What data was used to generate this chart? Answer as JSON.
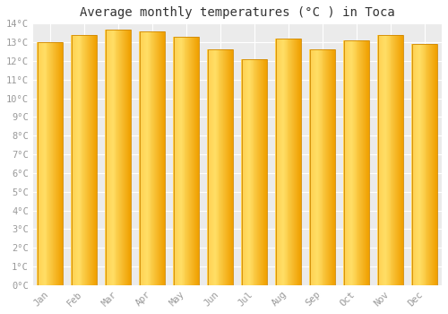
{
  "months": [
    "Jan",
    "Feb",
    "Mar",
    "Apr",
    "May",
    "Jun",
    "Jul",
    "Aug",
    "Sep",
    "Oct",
    "Nov",
    "Dec"
  ],
  "values": [
    13.0,
    13.4,
    13.7,
    13.6,
    13.3,
    12.6,
    12.1,
    13.2,
    12.6,
    13.1,
    13.4,
    12.9
  ],
  "bar_color_left": "#FFD050",
  "bar_color_right": "#F0A000",
  "bar_edge_color": "#D08800",
  "title": "Average monthly temperatures (°C ) in Toca",
  "ylim": [
    0,
    14
  ],
  "ytick_step": 1,
  "background_color": "#FFFFFF",
  "plot_bg_color": "#EBEBEB",
  "grid_color": "#FFFFFF",
  "title_fontsize": 10,
  "tick_fontsize": 7.5,
  "tick_color": "#999999",
  "title_color": "#333333",
  "font_family": "monospace"
}
